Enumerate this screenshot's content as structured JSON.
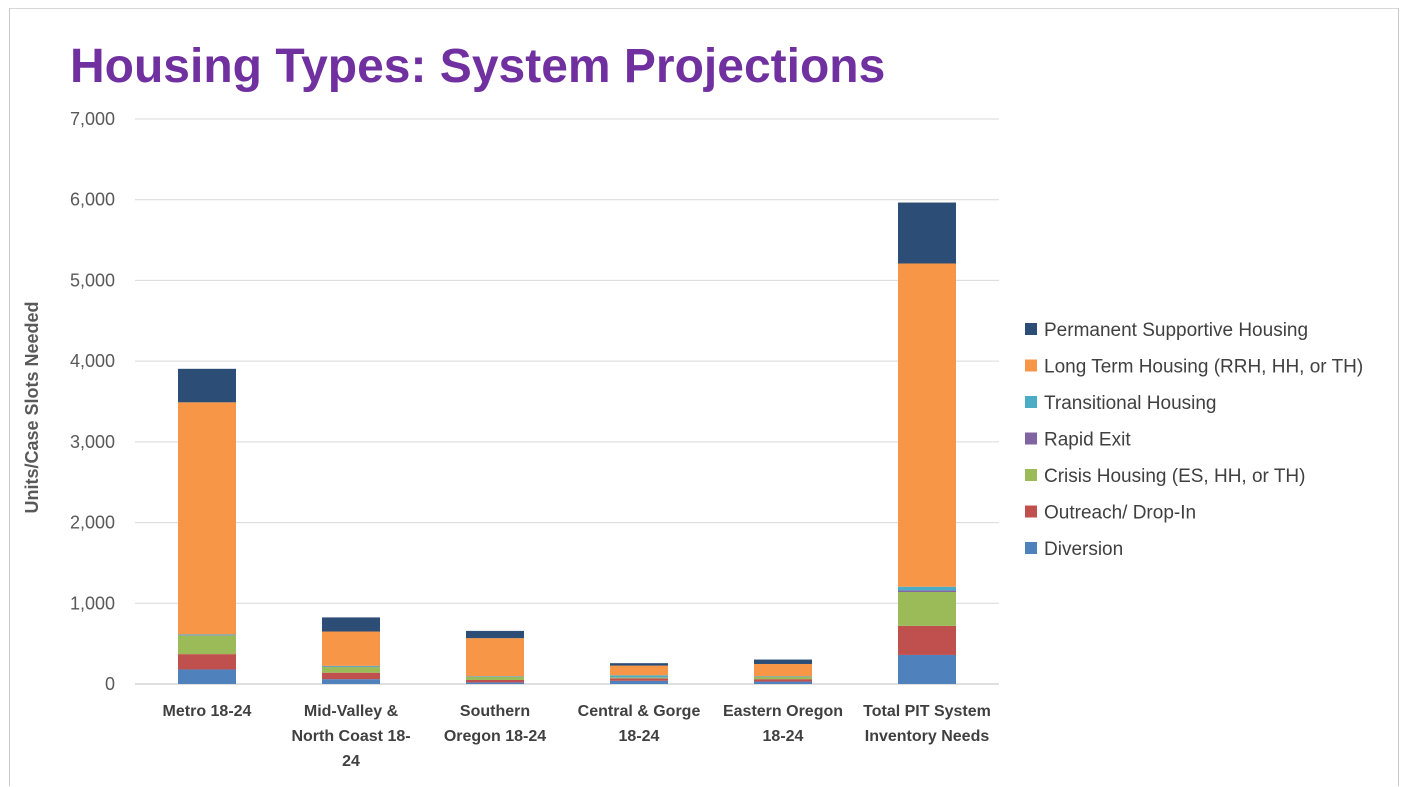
{
  "slide": {
    "title": "Housing Types: System Projections"
  },
  "chart_data": {
    "type": "bar",
    "stacked": true,
    "title": "",
    "xlabel": "",
    "ylabel": "Units/Case Slots Needed",
    "ylim": [
      0,
      7000
    ],
    "yticks": [
      0,
      1000,
      2000,
      3000,
      4000,
      5000,
      6000,
      7000
    ],
    "ytick_labels": [
      "0",
      "1,000",
      "2,000",
      "3,000",
      "4,000",
      "5,000",
      "6,000",
      "7,000"
    ],
    "grid": true,
    "legend_position": "right",
    "categories": [
      "Metro 18-24",
      "Mid-Valley & North Coast 18-24",
      "Southern Oregon 18-24",
      "Central & Gorge 18-24",
      "Eastern Oregon 18-24",
      "Total PIT System Inventory Needs"
    ],
    "category_label_lines": [
      [
        "Metro 18-24"
      ],
      [
        "Mid-Valley &",
        "North Coast 18-",
        "24"
      ],
      [
        "Southern",
        "Oregon 18-24"
      ],
      [
        "Central & Gorge",
        "18-24"
      ],
      [
        "Eastern Oregon",
        "18-24"
      ],
      [
        "Total PIT System",
        "Inventory Needs"
      ]
    ],
    "series": [
      {
        "name": "Diversion",
        "color": "#4f81bd",
        "values": [
          180,
          60,
          20,
          40,
          30,
          360
        ]
      },
      {
        "name": "Outreach/ Drop-In",
        "color": "#c0504d",
        "values": [
          190,
          80,
          30,
          30,
          30,
          360
        ]
      },
      {
        "name": "Crisis Housing (ES, HH, or TH)",
        "color": "#9bbb59",
        "values": [
          230,
          70,
          40,
          10,
          30,
          420
        ]
      },
      {
        "name": "Rapid Exit",
        "color": "#8064a2",
        "values": [
          5,
          5,
          3,
          3,
          3,
          20
        ]
      },
      {
        "name": "Transitional Housing",
        "color": "#4bacc6",
        "values": [
          10,
          10,
          5,
          25,
          5,
          45
        ]
      },
      {
        "name": "Long Term Housing (RRH, HH, or TH)",
        "color": "#f79646",
        "values": [
          2875,
          425,
          470,
          120,
          150,
          4005
        ]
      },
      {
        "name": "Permanent Supportive Housing",
        "color": "#2c4d75",
        "values": [
          415,
          175,
          90,
          30,
          55,
          755
        ]
      }
    ],
    "legend_order": [
      "Permanent Supportive Housing",
      "Long Term Housing (RRH, HH, or TH)",
      "Transitional Housing",
      "Rapid Exit",
      "Crisis Housing (ES, HH, or TH)",
      "Outreach/ Drop-In",
      "Diversion"
    ]
  }
}
